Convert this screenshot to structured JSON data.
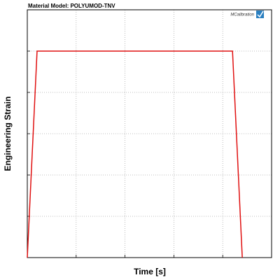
{
  "chart_data": {
    "type": "line",
    "title": "Material Model: POLYUMOD-TNV",
    "logo": "MCalibration",
    "x_label": "Time [s]",
    "y_label": "Engineering Strain",
    "x": [
      0,
      0.2,
      4.2,
      4.4
    ],
    "series": [
      {
        "color": "#e01010",
        "values": [
          0,
          5,
          5,
          0
        ]
      }
    ],
    "xlim": [
      0,
      5
    ],
    "ylim": [
      0,
      6
    ],
    "xticks": [
      0,
      1,
      2,
      3,
      4,
      5
    ],
    "yticks": [
      0,
      1,
      2,
      3,
      4,
      5,
      6
    ],
    "grid": true,
    "tick_labels": false
  }
}
